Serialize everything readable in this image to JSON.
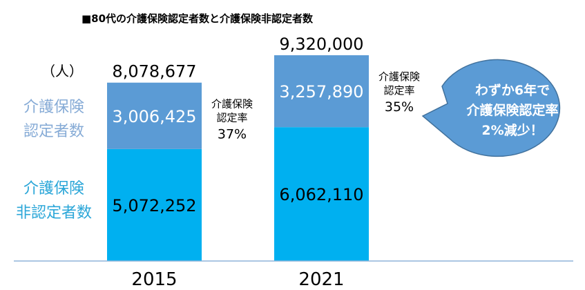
{
  "chart_data": {
    "type": "bar",
    "stacked": true,
    "title": "■80代の介護保険認定者数と介護保険非認定者数",
    "unit_label": "（人）",
    "categories": [
      "2015",
      "2021"
    ],
    "series": [
      {
        "name": "介護保険非認定者数",
        "name_lines": [
          "介護保険",
          "非認定者数"
        ],
        "values": [
          5072252,
          6062110
        ],
        "labels": [
          "5,072,252",
          "6,062,110"
        ],
        "color": "#00b0f0",
        "label_color": "#2aa6d8"
      },
      {
        "name": "介護保険認定者数",
        "name_lines": [
          "介護保険",
          "認定者数"
        ],
        "values": [
          3006425,
          3257890
        ],
        "labels": [
          "3,006,425",
          "3,257,890"
        ],
        "color": "#5b9bd5",
        "label_color": "#86abd6"
      }
    ],
    "totals": [
      "8,078,677",
      "9,320,000"
    ],
    "rates": [
      {
        "lines": [
          "介護保険",
          "認定率"
        ],
        "value": "37%"
      },
      {
        "lines": [
          "介護保険",
          "認定率"
        ],
        "value": "35%"
      }
    ],
    "callout": {
      "lines": [
        "わずか6年で",
        "介護保険認定率",
        "2%減少！"
      ],
      "color": "#5b9bd5"
    },
    "ylim": [
      0,
      9320000
    ]
  }
}
